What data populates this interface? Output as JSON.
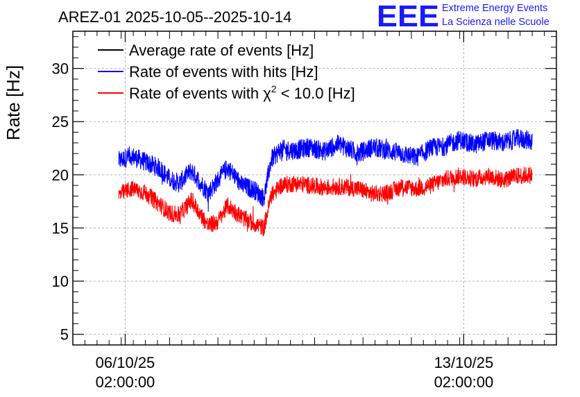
{
  "logo": {
    "letters": "EEE",
    "line1": "Extreme Energy Events",
    "line2": "La Scienza nelle Scuole",
    "color": "#1a1aff"
  },
  "chart_data": {
    "type": "line",
    "title": "AREZ-01 2025-10-05--2025-10-14",
    "xlabel": "",
    "ylabel": "Rate [Hz]",
    "ylim": [
      4,
      33.5
    ],
    "yticks": [
      5,
      10,
      15,
      20,
      25,
      30
    ],
    "xlim": [
      0,
      10
    ],
    "x_unit": "days since 2025-10-05 00:00",
    "grid": true,
    "legend_position": "top-left",
    "xticks": [
      {
        "x": 1.083,
        "line1": "06/10/25",
        "line2": "02:00:00"
      },
      {
        "x": 8.083,
        "line1": "13/10/25",
        "line2": "02:00:00"
      }
    ],
    "legend": [
      {
        "label": "Average rate of events [Hz]",
        "color": "#000000"
      },
      {
        "label": "Rate of events with hits [Hz]",
        "color": "#0000ff"
      },
      {
        "label_prefix": "Rate of events with ",
        "symbol": "χ",
        "superscript": "2",
        "label_suffix": " < 10.0 [Hz]",
        "color": "#ff0000"
      }
    ],
    "series": [
      {
        "name": "Rate of events with hits [Hz]",
        "color": "#0000ff",
        "noise_amplitude": 0.9,
        "x": [
          0.95,
          1.2,
          1.5,
          1.8,
          2.0,
          2.2,
          2.45,
          2.8,
          3.0,
          3.2,
          3.5,
          3.75,
          3.95,
          4.1,
          4.3,
          4.6,
          4.9,
          5.2,
          5.5,
          5.9,
          6.2,
          6.5,
          6.8,
          7.1,
          7.4,
          7.7,
          8.0,
          8.3,
          8.6,
          8.9,
          9.2,
          9.5
        ],
        "values": [
          21.3,
          21.8,
          21.2,
          20.6,
          19.6,
          19.2,
          20.4,
          18.3,
          19.5,
          20.7,
          19.0,
          18.6,
          17.8,
          21.4,
          22.4,
          22.3,
          22.6,
          22.2,
          22.9,
          22.0,
          22.6,
          22.3,
          22.0,
          21.6,
          22.5,
          22.7,
          23.3,
          22.8,
          23.3,
          23.0,
          23.4,
          23.2
        ]
      },
      {
        "name": "Rate of events with χ2 < 10.0 [Hz]",
        "color": "#ff0000",
        "noise_amplitude": 0.8,
        "x": [
          0.95,
          1.2,
          1.5,
          1.8,
          2.0,
          2.2,
          2.45,
          2.8,
          3.0,
          3.2,
          3.5,
          3.75,
          3.95,
          4.1,
          4.3,
          4.6,
          4.9,
          5.2,
          5.5,
          5.9,
          6.2,
          6.5,
          6.8,
          7.1,
          7.4,
          7.7,
          8.0,
          8.3,
          8.6,
          8.9,
          9.2,
          9.5
        ],
        "values": [
          18.1,
          18.7,
          18.3,
          17.2,
          16.4,
          16.2,
          17.6,
          15.2,
          15.6,
          17.1,
          16.0,
          15.4,
          15.0,
          18.0,
          19.0,
          19.2,
          19.0,
          18.8,
          18.9,
          18.7,
          18.2,
          18.3,
          18.9,
          18.7,
          19.0,
          19.6,
          19.9,
          19.6,
          19.9,
          19.5,
          19.9,
          20.0
        ]
      }
    ]
  }
}
